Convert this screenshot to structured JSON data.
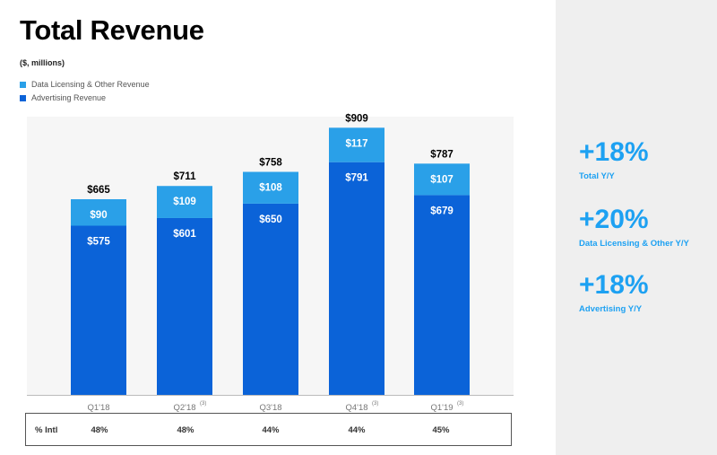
{
  "header": {
    "title": "Total Revenue",
    "subtitle": "($, millions)"
  },
  "legend": [
    {
      "label": "Data Licensing & Other Revenue",
      "color": "#2aa0e8"
    },
    {
      "label": "Advertising Revenue",
      "color": "#0b63d8"
    }
  ],
  "chart_data": {
    "type": "bar",
    "stacked": true,
    "title": "Total Revenue",
    "ylabel": "($, millions)",
    "categories": [
      "Q1'18",
      "Q2'18",
      "Q3'18",
      "Q4'18",
      "Q1'19"
    ],
    "category_notes": [
      "",
      "(3)",
      "",
      "(3)",
      "(3)"
    ],
    "series": [
      {
        "name": "Advertising Revenue",
        "color": "#0b63d8",
        "values": [
          575,
          601,
          650,
          791,
          679
        ],
        "labels": [
          "$575",
          "$601",
          "$650",
          "$791",
          "$679"
        ]
      },
      {
        "name": "Data Licensing & Other Revenue",
        "color": "#2aa0e8",
        "values": [
          90,
          109,
          108,
          117,
          107
        ],
        "labels": [
          "$90",
          "$109",
          "$108",
          "$117",
          "$107"
        ]
      }
    ],
    "totals": [
      665,
      711,
      758,
      909,
      787
    ],
    "total_labels": [
      "$665",
      "$711",
      "$758",
      "$909",
      "$787"
    ],
    "ylim": [
      0,
      909
    ]
  },
  "intl": {
    "label": "% Intl",
    "values": [
      "48%",
      "48%",
      "44%",
      "44%",
      "45%"
    ]
  },
  "stats": [
    {
      "value": "+18%",
      "label": "Total Y/Y"
    },
    {
      "value": "+20%",
      "label": "Data Licensing & Other Y/Y"
    },
    {
      "value": "+18%",
      "label": "Advertising Y/Y"
    }
  ]
}
